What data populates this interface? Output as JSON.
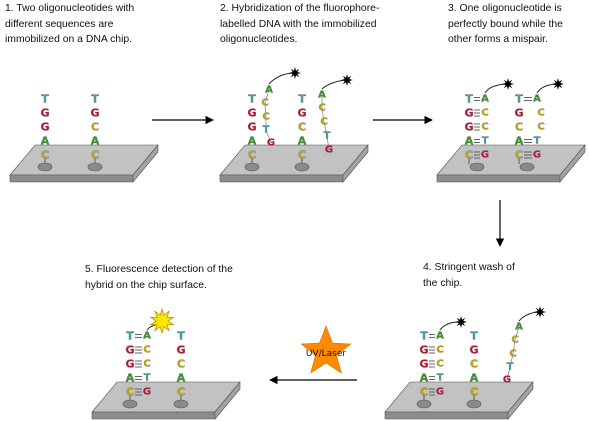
{
  "steps": [
    {
      "lines": [
        "1. Two oligonucleotides with",
        "different sequences are",
        "immobilized on a DNA chip."
      ]
    },
    {
      "lines": [
        "2. Hybridization of the fluorophore-",
        "labelled DNA with the immobilized",
        "oligonucleotides."
      ]
    },
    {
      "lines": [
        "3. One oligonucleotide is",
        "perfectly bound while the",
        "other forms a mispair."
      ]
    },
    {
      "lines": [
        "4. Stringent  wash of",
        "the chip."
      ]
    },
    {
      "lines": [
        "5. Fluorescence detection of the",
        "hybrid on the chip surface."
      ]
    }
  ],
  "laser_label": "UV/Laser",
  "bases": {
    "T": "T",
    "G": "G",
    "C": "C",
    "A": "A"
  },
  "base_colors": {
    "T": "#3fa7b4",
    "G": "#c8102e",
    "C": "#c9b400",
    "A": "#3a9a2a"
  },
  "colors": {
    "chip_top": "#c2c2c2",
    "chip_side": "#8c8c8c",
    "spot": "#8a8a8a",
    "star_burst": "#ffe600",
    "laser_star": "#ff8a00",
    "arrow": "#000000"
  },
  "icons": {
    "fluorophore": "black-star-icon",
    "fluorescence": "yellow-burst-icon",
    "laser": "orange-star-icon"
  }
}
